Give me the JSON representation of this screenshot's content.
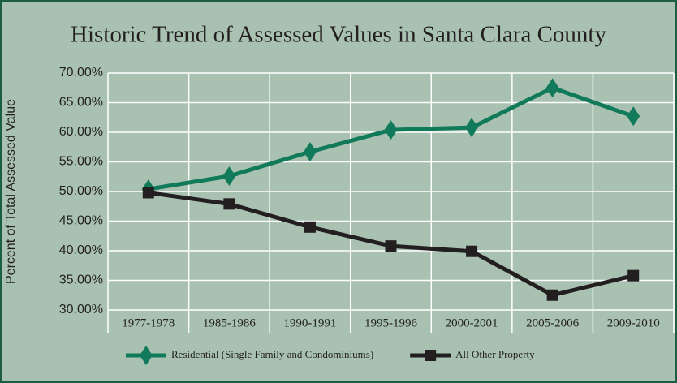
{
  "chart_data": {
    "type": "line",
    "title": "Historic Trend of Assessed Values in Santa Clara County",
    "y_label": "Percent of Total Assessed Value",
    "categories": [
      "1977-1978",
      "1985-1986",
      "1990-1991",
      "1995-1996",
      "2000-2001",
      "2005-2006",
      "2009-2010"
    ],
    "series": [
      {
        "name": "Residential (Single Family and Condominiums)",
        "color": "#117a5a",
        "marker": "diamond",
        "values": [
          50.4,
          52.6,
          56.7,
          60.4,
          60.8,
          67.5,
          62.7
        ]
      },
      {
        "name": "All Other Property",
        "color": "#231f20",
        "marker": "square",
        "values": [
          49.8,
          47.9,
          44.0,
          40.8,
          39.9,
          32.5,
          35.8
        ]
      }
    ],
    "ylim": [
      30,
      70
    ],
    "yticks": [
      {
        "value": 30,
        "label": "30.00%"
      },
      {
        "value": 35,
        "label": "35.00%"
      },
      {
        "value": 40,
        "label": "40.00%"
      },
      {
        "value": 45,
        "label": "45.00%"
      },
      {
        "value": 50,
        "label": "50.00%"
      },
      {
        "value": 55,
        "label": "55.00%"
      },
      {
        "value": 60,
        "label": "60.00%"
      },
      {
        "value": 65,
        "label": "65.00%"
      },
      {
        "value": 70,
        "label": "70.00%"
      }
    ],
    "grid": true,
    "legend": "bottom"
  }
}
